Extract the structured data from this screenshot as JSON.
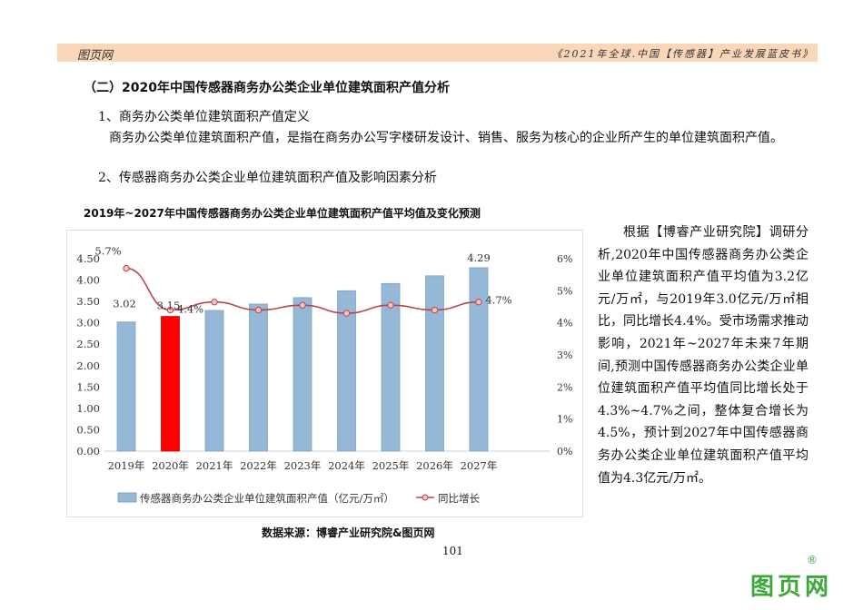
{
  "header": {
    "left": "图页网",
    "right": "《2021年全球.中国【传感器】产业发展蓝皮书》"
  },
  "section_title": "（二）2020年中国传感器商务办公类企业单位建筑面积产值分析",
  "sub1": "1、商务办公类单位建筑面积产值定义",
  "para1": "商务办公类单位建筑面积产值，是指在商务办公写字楼研发设计、销售、服务为核心的企业所产生的单位建筑面积产值。",
  "sub2": "2、传感器商务办公类企业单位建筑面积产值及影响因素分析",
  "side_text": "根据【博睿产业研究院】调研分析,2020年中国传感器商务办公类企业单位建筑面积产值平均值为3.2亿元/万㎡，与2019年3.0亿元/万㎡相比，同比增长4.4%。受市场需求推动影响，2021年~2027年未来7年期间,预测中国传感器商务办公类企业单位建筑面积产值平均值同比增长处于4.3%~4.7%之间，整体复合增长为4.5%，预计到2027年中国传感器商务办公类企业单位建筑面积产值平均值为4.3亿元/万㎡。",
  "source": "数据来源：博睿产业研究院&图页网",
  "page_number": "101",
  "watermark": {
    "text": "图页网",
    "mark": "®"
  },
  "chart_data": {
    "type": "bar+line",
    "title": "2019年~2027年中国传感器商务办公类企业单位建筑面积产值平均值及变化预测",
    "categories": [
      "2019年",
      "2020年",
      "2021年",
      "2022年",
      "2023年",
      "2024年",
      "2025年",
      "2026年",
      "2027年"
    ],
    "series": [
      {
        "name": "传感器商务办公类企业单位建筑面积产值（亿元/万㎡）",
        "type": "bar",
        "axis": "left",
        "values": [
          3.02,
          3.15,
          3.29,
          3.44,
          3.59,
          3.75,
          3.92,
          4.1,
          4.29
        ],
        "color": "#95b8d6",
        "highlight_index": 1,
        "highlight_color": "#ff0000"
      },
      {
        "name": "同比增长",
        "type": "line",
        "axis": "right",
        "values": [
          5.7,
          4.4,
          4.65,
          4.4,
          4.55,
          4.3,
          4.55,
          4.4,
          4.65
        ],
        "color": "#b5474b"
      }
    ],
    "data_labels": [
      {
        "series": 0,
        "index": 0,
        "text": "3.02"
      },
      {
        "series": 0,
        "index": 1,
        "text": "3.15"
      },
      {
        "series": 0,
        "index": 8,
        "text": "4.29"
      },
      {
        "series": 1,
        "index": 0,
        "text": "5.7%"
      },
      {
        "series": 1,
        "index": 1,
        "text": "4.4%"
      },
      {
        "series": 1,
        "index": 8,
        "text": "4.7%"
      }
    ],
    "left_axis": {
      "ylim": [
        0,
        4.5
      ],
      "ticks": [
        "0.00",
        "0.50",
        "1.00",
        "1.50",
        "2.00",
        "2.50",
        "3.00",
        "3.50",
        "4.00",
        "4.50"
      ]
    },
    "right_axis": {
      "ylim": [
        0,
        6
      ],
      "ticks": [
        "0%",
        "1%",
        "2%",
        "3%",
        "4%",
        "5%",
        "6%"
      ]
    },
    "legend": "bottom"
  }
}
